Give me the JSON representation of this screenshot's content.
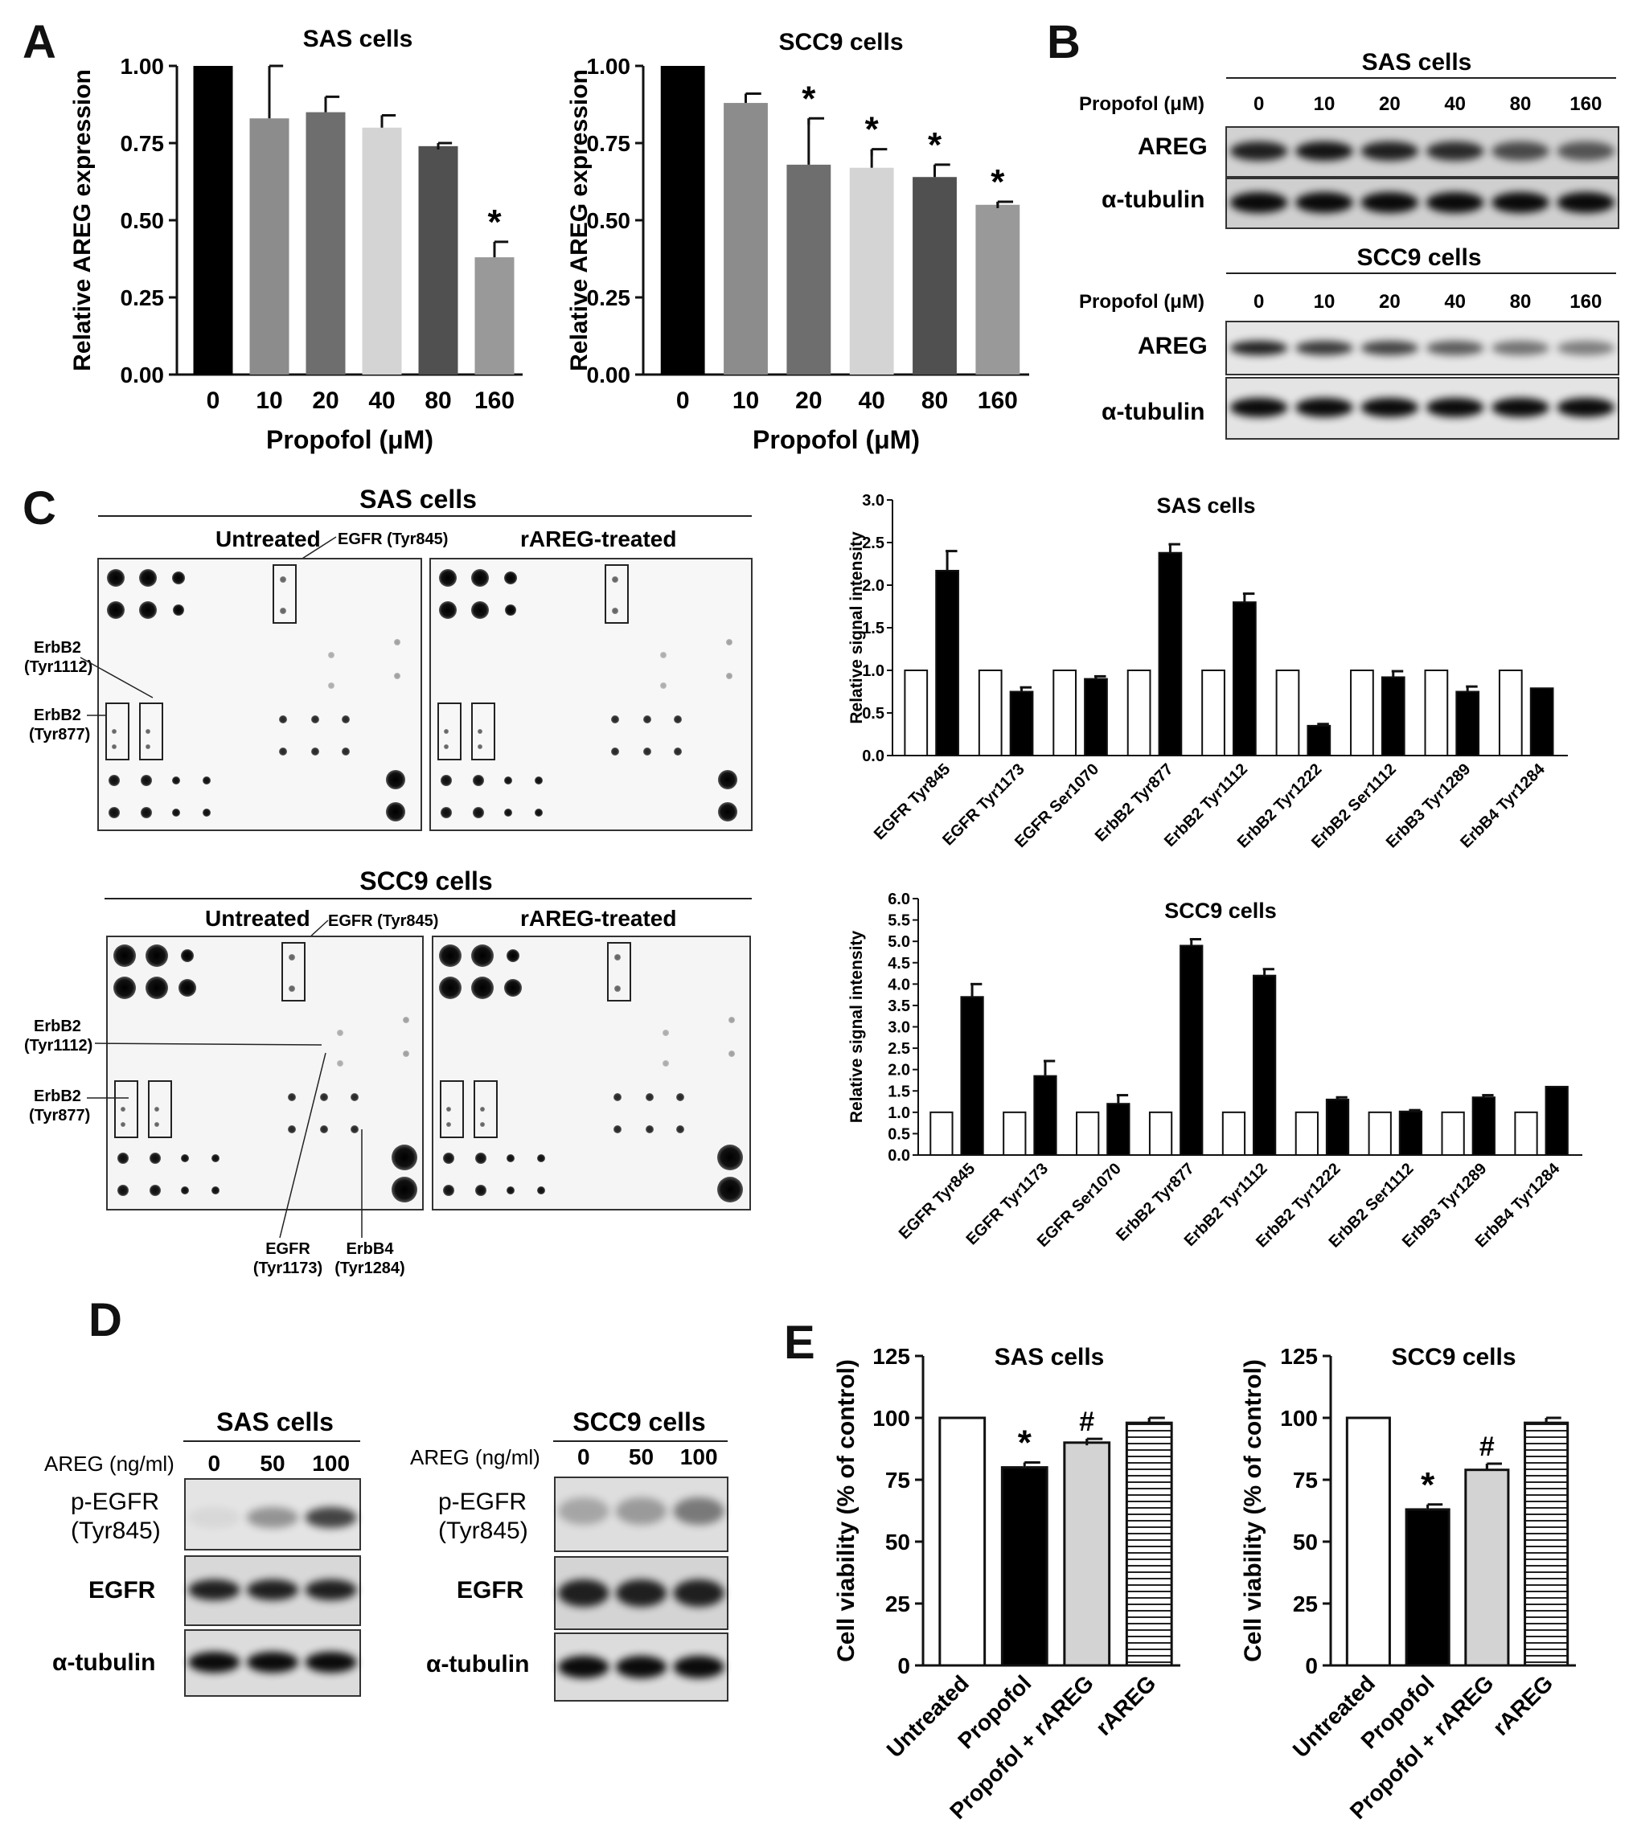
{
  "panel_letters": [
    "A",
    "B",
    "C",
    "D",
    "E"
  ],
  "panel_a": {
    "ylabel": "Relative AREG expression",
    "xlabel": "Propofol (μM)",
    "yticks": [
      "0.00",
      "0.25",
      "0.50",
      "0.75",
      "1.00"
    ]
  },
  "panel_b": {
    "sas_title": "SAS cells",
    "scc9_title": "SCC9 cells",
    "dose_label": "Propofol (μM)",
    "doses": [
      "0",
      "10",
      "20",
      "40",
      "80",
      "160"
    ],
    "rows": [
      "AREG",
      "α-tubulin"
    ],
    "sas_areg_intensity": [
      0.85,
      0.9,
      0.85,
      0.8,
      0.65,
      0.6
    ],
    "scc9_areg_intensity": [
      0.85,
      0.75,
      0.7,
      0.6,
      0.5,
      0.45
    ]
  },
  "panel_c": {
    "sas_title": "SAS cells",
    "scc9_title": "SCC9 cells",
    "untreated": "Untreated",
    "treated": "rAREG-treated",
    "callouts": {
      "egfr_845": "EGFR (Tyr845)",
      "erbb2_1112_a": "ErbB2",
      "erbb2_1112_b": "(Tyr1112)",
      "erbb2_877_a": "ErbB2",
      "erbb2_877_b": "(Tyr877)",
      "egfr_1173_a": "EGFR",
      "egfr_1173_b": "(Tyr1173)",
      "erbb4_a": "ErbB4",
      "erbb4_b": "(Tyr1284)"
    }
  },
  "panel_d": {
    "sas_title": "SAS cells",
    "scc9_title": "SCC9 cells",
    "dose_label": "AREG (ng/ml)",
    "doses": [
      "0",
      "50",
      "100"
    ],
    "row1_a": "p-EGFR",
    "row1_b": "(Tyr845)",
    "row2": "EGFR",
    "row3": "α-tubulin",
    "sas_pegfr_intensity": [
      0.05,
      0.35,
      0.7
    ],
    "scc9_pegfr_intensity": [
      0.25,
      0.3,
      0.45
    ]
  },
  "panel_e": {
    "ylabel": "Cell viability (% of control)",
    "yticks": [
      "0",
      "25",
      "50",
      "75",
      "100",
      "125"
    ]
  },
  "chart_data": [
    {
      "type": "bar",
      "title": "SAS cells",
      "xlabel": "Propofol (μM)",
      "ylabel": "Relative AREG expression",
      "categories": [
        "0",
        "10",
        "20",
        "40",
        "80",
        "160"
      ],
      "values": [
        1.0,
        0.83,
        0.85,
        0.8,
        0.74,
        0.38
      ],
      "errors": [
        0,
        0.17,
        0.05,
        0.04,
        0.01,
        0.05
      ],
      "significance": [
        "",
        "",
        "",
        "",
        "",
        "*"
      ],
      "colors": [
        "#000000",
        "#8c8c8c",
        "#6e6e6e",
        "#d4d4d4",
        "#505050",
        "#999999"
      ],
      "ylim": [
        0,
        1.0
      ]
    },
    {
      "type": "bar",
      "title": "SCC9 cells",
      "xlabel": "Propofol (μM)",
      "ylabel": "Relative AREG expression",
      "categories": [
        "0",
        "10",
        "20",
        "40",
        "80",
        "160"
      ],
      "values": [
        1.0,
        0.88,
        0.68,
        0.67,
        0.64,
        0.55
      ],
      "errors": [
        0,
        0.03,
        0.15,
        0.06,
        0.04,
        0.01
      ],
      "significance": [
        "",
        "",
        "*",
        "*",
        "*",
        "*"
      ],
      "colors": [
        "#000000",
        "#8c8c8c",
        "#6e6e6e",
        "#d4d4d4",
        "#505050",
        "#999999"
      ],
      "ylim": [
        0,
        1.0
      ]
    },
    {
      "type": "bar",
      "title": "SAS cells",
      "ylabel": "Relative signal intensity",
      "categories": [
        "EGFR Tyr845",
        "EGFR Tyr1173",
        "EGFR Ser1070",
        "ErbB2 Tyr877",
        "ErbB2 Tyr1112",
        "ErbB2 Tyr1222",
        "ErbB2 Ser1112",
        "ErbB3 Tyr1289",
        "ErbB4 Tyr1284"
      ],
      "series": [
        {
          "color": "#ffffff",
          "values": [
            1,
            1,
            1,
            1,
            1,
            1,
            1,
            1,
            1
          ],
          "errors": [
            0,
            0,
            0,
            0,
            0,
            0,
            0,
            0,
            0
          ]
        },
        {
          "color": "#000000",
          "values": [
            2.17,
            0.75,
            0.9,
            2.38,
            1.8,
            0.35,
            0.92,
            0.75,
            0.79
          ],
          "errors": [
            0.23,
            0.05,
            0.03,
            0.1,
            0.1,
            0.02,
            0.07,
            0.06,
            0
          ]
        }
      ],
      "yticks": [
        "0.0",
        "0.5",
        "1.0",
        "1.5",
        "2.0",
        "2.5",
        "3.0"
      ],
      "ylim": [
        0,
        3.0
      ]
    },
    {
      "type": "bar",
      "title": "SCC9 cells",
      "ylabel": "Relative signal intensity",
      "categories": [
        "EGFR Tyr845",
        "EGFR Tyr1173",
        "EGFR Ser1070",
        "ErbB2 Tyr877",
        "ErbB2 Tyr1112",
        "ErbB2 Tyr1222",
        "ErbB2 Ser1112",
        "ErbB3 Tyr1289",
        "ErbB4 Tyr1284"
      ],
      "series": [
        {
          "color": "#ffffff",
          "values": [
            1,
            1,
            1,
            1,
            1,
            1,
            1,
            1,
            1
          ],
          "errors": [
            0,
            0,
            0,
            0,
            0,
            0,
            0,
            0,
            0
          ]
        },
        {
          "color": "#000000",
          "values": [
            3.7,
            1.85,
            1.2,
            4.9,
            4.2,
            1.3,
            1.02,
            1.35,
            1.6
          ],
          "errors": [
            0.3,
            0.35,
            0.2,
            0.15,
            0.15,
            0.05,
            0.03,
            0.05,
            0
          ]
        }
      ],
      "yticks": [
        "0.0",
        "0.5",
        "1.0",
        "1.5",
        "2.0",
        "2.5",
        "3.0",
        "3.5",
        "4.0",
        "4.5",
        "5.0",
        "5.5",
        "6.0"
      ],
      "ylim": [
        0,
        6.0
      ]
    },
    {
      "type": "bar",
      "title": "SAS cells",
      "ylabel": "Cell viability (% of control)",
      "categories": [
        "Untreated",
        "Propofol",
        "Propofol + rAREG",
        "rAREG"
      ],
      "values": [
        100,
        80,
        90,
        98
      ],
      "errors": [
        0,
        2,
        1.5,
        2
      ],
      "significance": [
        "",
        "*",
        "#",
        ""
      ],
      "fills": [
        "white",
        "black",
        "gray",
        "hatch"
      ],
      "ylim": [
        0,
        125
      ]
    },
    {
      "type": "bar",
      "title": "SCC9 cells",
      "ylabel": "Cell viability (% of control)",
      "categories": [
        "Untreated",
        "Propofol",
        "Propofol + rAREG",
        "rAREG"
      ],
      "values": [
        100,
        63,
        79,
        98
      ],
      "errors": [
        0,
        2,
        2.5,
        2
      ],
      "significance": [
        "",
        "*",
        "#",
        ""
      ],
      "fills": [
        "white",
        "black",
        "gray",
        "hatch"
      ],
      "ylim": [
        0,
        125
      ]
    }
  ]
}
